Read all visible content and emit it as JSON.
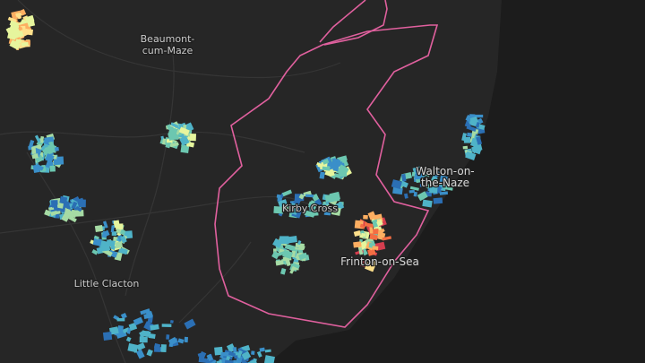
{
  "map": {
    "labels": [
      {
        "lines": [
          "Beaumont-",
          "cum-Maze"
        ]
      },
      {
        "lines": [
          "Walton-on-",
          "the-Naze"
        ]
      },
      {
        "lines": [
          "Kirby Cross"
        ]
      },
      {
        "lines": [
          "Frinton-on-Sea"
        ]
      },
      {
        "lines": [
          "Little Clacton"
        ]
      }
    ]
  }
}
